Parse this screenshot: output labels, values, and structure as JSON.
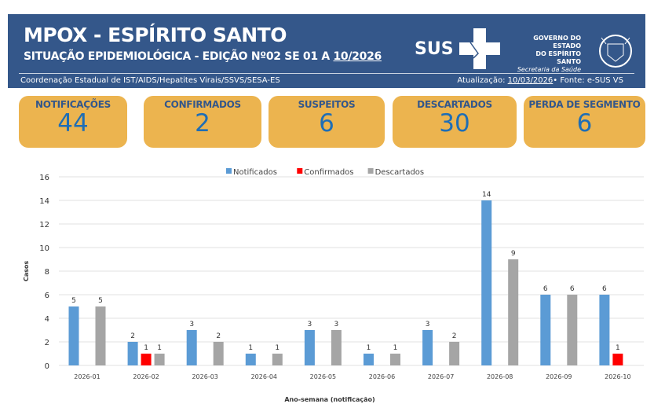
{
  "header": {
    "title": "MPOX - ESPÍRITO SANTO",
    "subtitle_prefix": "SITUAÇÃO EPIDEMIOLÓGICA - EDIÇÃO Nº02  SE 01 A ",
    "subtitle_week": "10/2026",
    "coordination": "Coordenação Estadual de IST/AIDS/Hepatites Virais/SSVS/SESA-ES",
    "update_label": "Atualização: ",
    "update_date": "10/03/2026",
    "source": "• Fonte: e-SUS VS",
    "sus_logo": "SUS",
    "gov_line1": "GOVERNO DO ESTADO",
    "gov_line2": "DO ESPÍRITO SANTO",
    "gov_line3": "Secretaria da Saúde"
  },
  "cards": [
    {
      "label": "NOTIFICAÇÕES",
      "value": "44"
    },
    {
      "label": "CONFIRMADOS",
      "value": "2"
    },
    {
      "label": "SUSPEITOS",
      "value": "6"
    },
    {
      "label": "DESCARTADOS",
      "value": "30"
    },
    {
      "label": "PERDA DE SEGMENTO",
      "value": "6"
    }
  ],
  "chart_data": {
    "type": "bar",
    "xlabel": "Ano-semana (notificação)",
    "ylabel": "Casos",
    "ylim": [
      0,
      16
    ],
    "yticks": [
      0,
      2,
      4,
      6,
      8,
      10,
      12,
      14,
      16
    ],
    "legend": "top",
    "grid": true,
    "categories": [
      "2026-01",
      "2026-02",
      "2026-03",
      "2026-04",
      "2026-05",
      "2026-06",
      "2026-07",
      "2026-08",
      "2026-09",
      "2026-10"
    ],
    "series": [
      {
        "name": "Notificados",
        "color": "#5b9bd5",
        "values": [
          5,
          2,
          3,
          1,
          3,
          1,
          3,
          14,
          6,
          6
        ]
      },
      {
        "name": "Confirmados",
        "color": "#ff0000",
        "values": [
          0,
          1,
          0,
          0,
          0,
          0,
          0,
          0,
          0,
          1
        ]
      },
      {
        "name": "Descartados",
        "color": "#a5a5a5",
        "values": [
          5,
          1,
          2,
          1,
          3,
          1,
          2,
          9,
          6,
          0
        ]
      }
    ]
  }
}
